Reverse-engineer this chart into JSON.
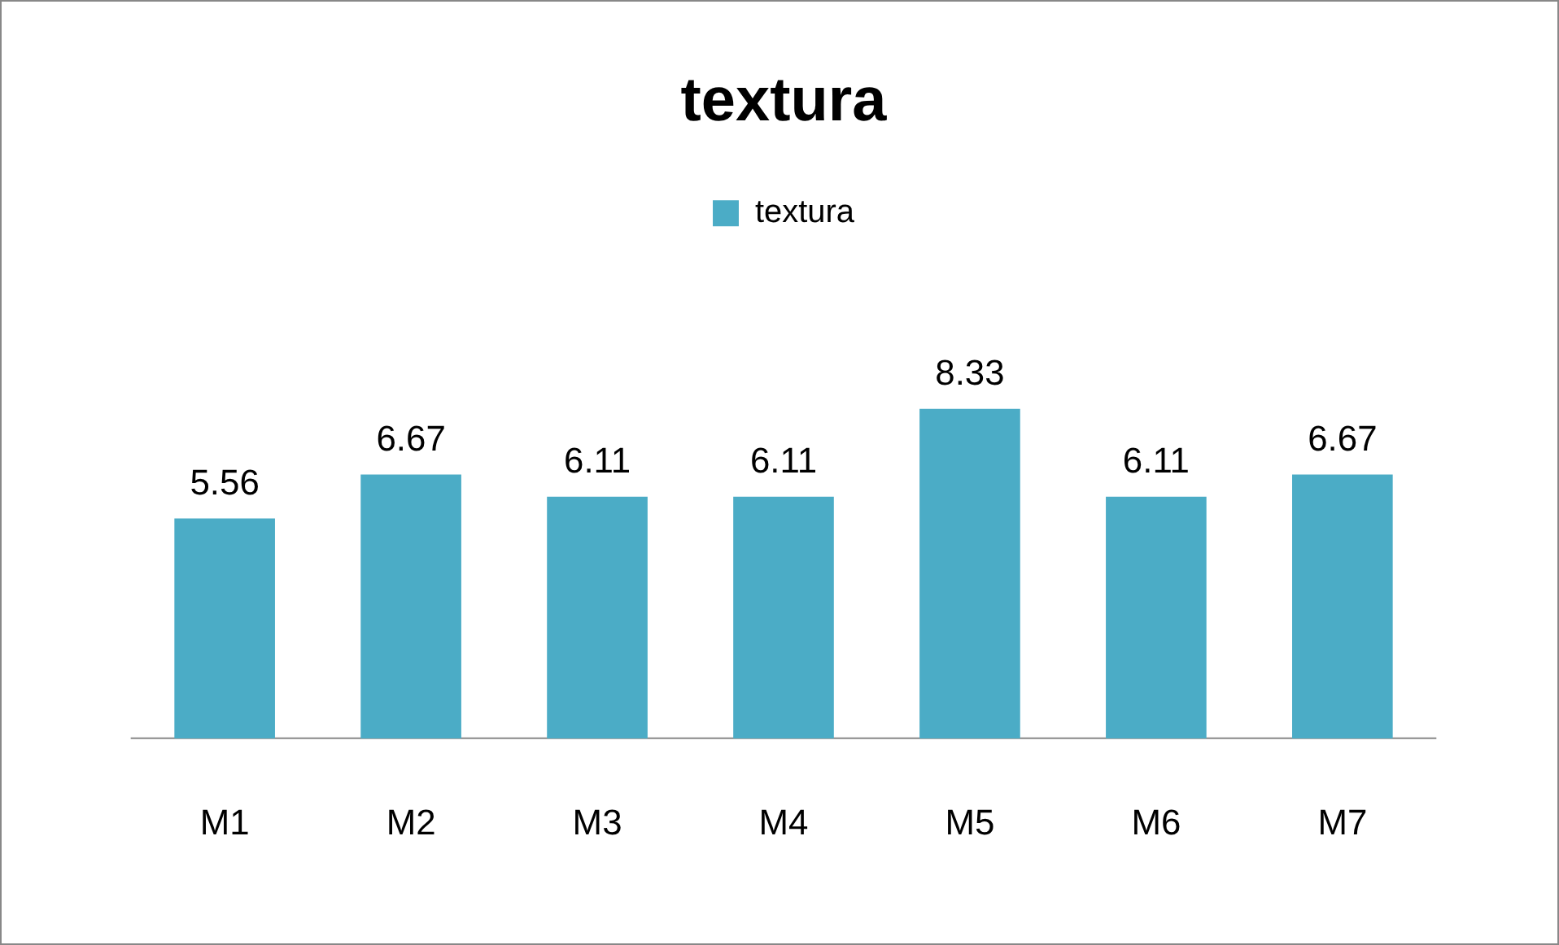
{
  "chart_data": {
    "type": "bar",
    "title": "textura",
    "categories": [
      "M1",
      "M2",
      "M3",
      "M4",
      "M5",
      "M6",
      "M7"
    ],
    "series": [
      {
        "name": "textura",
        "color": "#4bacc6",
        "values": [
          5.56,
          6.67,
          6.11,
          6.11,
          8.33,
          6.11,
          6.67
        ]
      }
    ],
    "data_labels": true,
    "legend": "top",
    "grid": false
  }
}
